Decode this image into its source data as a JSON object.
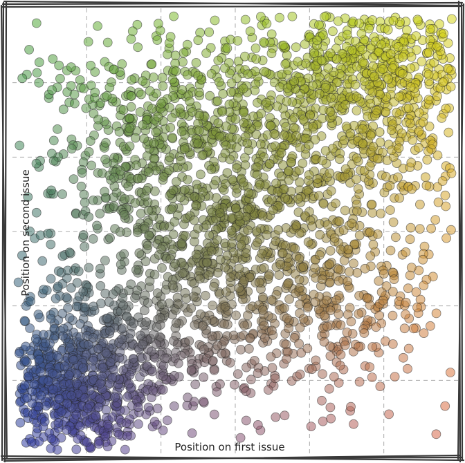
{
  "chart_data": {
    "type": "scatter",
    "title": "",
    "xlabel": "Position on first issue",
    "ylabel": "Position on second issue",
    "xlim": [
      0,
      6
    ],
    "ylim": [
      0,
      6
    ],
    "grid": true,
    "legend": "none",
    "color_scheme": {
      "low_low": "#2c3aa8",
      "low_high": "#4caa3a",
      "high_low": "#e0664a",
      "high_high": "#d8d81a",
      "middle": "#5f6f26"
    },
    "clusters": [
      {
        "name": "",
        "center": [
          0.8,
          0.9
        ],
        "spread": [
          0.55,
          0.45
        ],
        "count": 650
      },
      {
        "name": "",
        "center": [
          2.8,
          3.2
        ],
        "spread": [
          1.2,
          1.1
        ],
        "count": 1100
      },
      {
        "name": "",
        "center": [
          4.8,
          5.0
        ],
        "spread": [
          0.9,
          0.7
        ],
        "count": 800
      },
      {
        "name": "",
        "center": [
          2.0,
          4.6
        ],
        "spread": [
          0.9,
          0.7
        ],
        "count": 280
      },
      {
        "name": "",
        "center": [
          4.4,
          2.1
        ],
        "spread": [
          0.9,
          0.7
        ],
        "count": 260
      },
      {
        "name": "",
        "center": [
          1.8,
          1.6
        ],
        "spread": [
          0.8,
          0.5
        ],
        "count": 260
      }
    ]
  }
}
